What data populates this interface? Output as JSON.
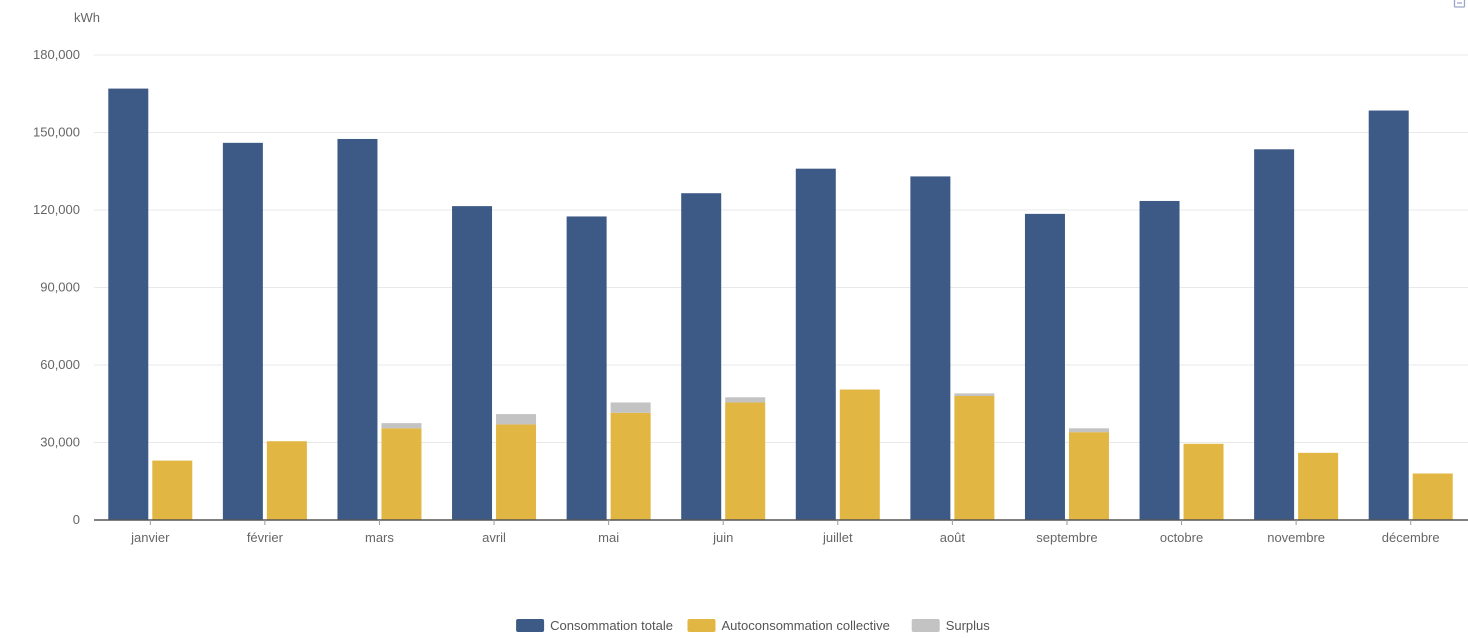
{
  "chart_data": {
    "type": "bar",
    "ylabel": "kWh",
    "ylim": [
      0,
      180000
    ],
    "yticks": [
      0,
      30000,
      60000,
      90000,
      120000,
      150000,
      180000
    ],
    "ytick_labels": [
      "0",
      "30,000",
      "60,000",
      "90,000",
      "120,000",
      "150,000",
      "180,000"
    ],
    "categories": [
      "janvier",
      "février",
      "mars",
      "avril",
      "mai",
      "juin",
      "juillet",
      "août",
      "septembre",
      "octobre",
      "novembre",
      "décembre"
    ],
    "series": [
      {
        "name": "Consommation totale",
        "color": "#3d5a86",
        "stack": "a",
        "values": [
          167000,
          146000,
          147500,
          121500,
          117500,
          126500,
          136000,
          133000,
          118500,
          123500,
          143500,
          158500
        ]
      },
      {
        "name": "Autoconsommation collective",
        "color": "#e1b642",
        "stack": "b",
        "values": [
          23000,
          30500,
          35500,
          37000,
          41500,
          45500,
          50500,
          48000,
          34000,
          29500,
          26000,
          18000
        ]
      },
      {
        "name": "Surplus",
        "color": "#c3c3c3",
        "stack": "b",
        "values": [
          0,
          0,
          2000,
          4000,
          4000,
          2000,
          0,
          1000,
          1500,
          0,
          0,
          0
        ]
      }
    ],
    "legend_position": "bottom-center",
    "grid": true
  },
  "icons": {
    "export": "download-icon"
  }
}
